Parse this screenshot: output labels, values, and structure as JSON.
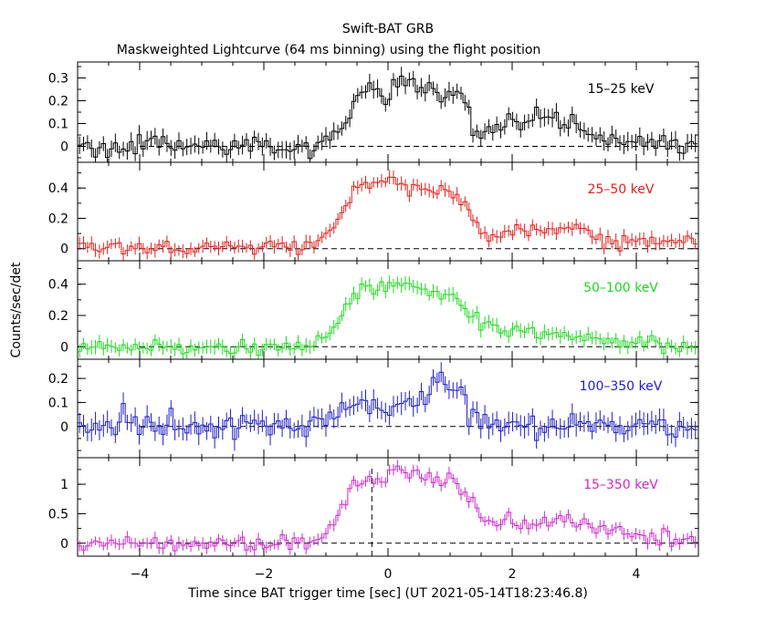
{
  "chart_data": {
    "type": "line",
    "title": "Swift-BAT GRB",
    "subtitle": "Maskweighted Lightcurve (64 ms binning) using the flight position",
    "xlabel": "Time since BAT trigger time [sec] (UT 2021-05-14T18:23:46.8)",
    "ylabel": "Counts/sec/det",
    "xlim": [
      -5,
      5
    ],
    "x_ticks": [
      -4,
      -2,
      0,
      2,
      4
    ],
    "x_tick_labels": [
      "−4",
      "−2",
      "0",
      "2",
      "4"
    ],
    "bin_width_s": 0.064,
    "panels": [
      {
        "name": "15–25 keV",
        "color": "#000000",
        "ylim": [
          -0.07,
          0.37
        ],
        "yticks": [
          0,
          0.1,
          0.2,
          0.3
        ],
        "ytick_labels": [
          "0",
          "0.1",
          "0.2",
          "0.3"
        ],
        "err": 0.035,
        "noise": 0.022,
        "keypoints": [
          [
            -5,
            0.0
          ],
          [
            -1.3,
            0.0
          ],
          [
            -1.0,
            0.04
          ],
          [
            -0.6,
            0.12
          ],
          [
            -0.5,
            0.24
          ],
          [
            0.0,
            0.25
          ],
          [
            0.3,
            0.28
          ],
          [
            1.0,
            0.21
          ],
          [
            1.3,
            0.17
          ],
          [
            1.4,
            0.02
          ],
          [
            1.6,
            0.08
          ],
          [
            2.0,
            0.09
          ],
          [
            2.4,
            0.11
          ],
          [
            2.6,
            0.13
          ],
          [
            2.8,
            0.12
          ],
          [
            3.0,
            0.09
          ],
          [
            3.4,
            0.03
          ],
          [
            4.0,
            0.02
          ],
          [
            5.0,
            0.0
          ]
        ]
      },
      {
        "name": "25–50 keV",
        "color": "#e0201c",
        "ylim": [
          -0.08,
          0.57
        ],
        "yticks": [
          0,
          0.2,
          0.4
        ],
        "ytick_labels": [
          "0",
          "0.2",
          "0.4"
        ],
        "err": 0.04,
        "noise": 0.025,
        "keypoints": [
          [
            -5,
            0.01
          ],
          [
            -1.3,
            0.01
          ],
          [
            -1.1,
            0.05
          ],
          [
            -0.8,
            0.2
          ],
          [
            -0.6,
            0.38
          ],
          [
            -0.2,
            0.45
          ],
          [
            0.1,
            0.47
          ],
          [
            0.3,
            0.4
          ],
          [
            0.7,
            0.38
          ],
          [
            1.0,
            0.37
          ],
          [
            1.3,
            0.25
          ],
          [
            1.5,
            0.1
          ],
          [
            2.0,
            0.12
          ],
          [
            2.5,
            0.12
          ],
          [
            3.0,
            0.14
          ],
          [
            3.5,
            0.08
          ],
          [
            4.0,
            0.05
          ],
          [
            5.0,
            0.03
          ]
        ]
      },
      {
        "name": "50–100 keV",
        "color": "#1fd81f",
        "ylim": [
          -0.08,
          0.55
        ],
        "yticks": [
          0,
          0.2,
          0.4
        ],
        "ytick_labels": [
          "0",
          "0.2",
          "0.4"
        ],
        "err": 0.04,
        "noise": 0.025,
        "keypoints": [
          [
            -5,
            0.0
          ],
          [
            -1.2,
            0.0
          ],
          [
            -0.9,
            0.1
          ],
          [
            -0.6,
            0.3
          ],
          [
            -0.4,
            0.38
          ],
          [
            -0.2,
            0.35
          ],
          [
            0.1,
            0.43
          ],
          [
            0.3,
            0.42
          ],
          [
            0.6,
            0.36
          ],
          [
            1.0,
            0.35
          ],
          [
            1.3,
            0.2
          ],
          [
            1.6,
            0.12
          ],
          [
            2.0,
            0.09
          ],
          [
            2.5,
            0.07
          ],
          [
            3.0,
            0.06
          ],
          [
            3.6,
            0.03
          ],
          [
            5.0,
            0.0
          ]
        ]
      },
      {
        "name": "100–350 keV",
        "color": "#1e1ec8",
        "ylim": [
          -0.13,
          0.28
        ],
        "yticks": [
          0,
          0.1,
          0.2
        ],
        "ytick_labels": [
          "0",
          "0.1",
          "0.2"
        ],
        "err": 0.04,
        "noise": 0.028,
        "keypoints": [
          [
            -5,
            0.0
          ],
          [
            -1.1,
            0.0
          ],
          [
            -0.8,
            0.06
          ],
          [
            -0.4,
            0.08
          ],
          [
            0.0,
            0.07
          ],
          [
            0.3,
            0.09
          ],
          [
            0.6,
            0.13
          ],
          [
            0.9,
            0.17
          ],
          [
            1.2,
            0.14
          ],
          [
            1.3,
            0.03
          ],
          [
            2.0,
            0.02
          ],
          [
            3.0,
            0.01
          ],
          [
            5.0,
            0.0
          ]
        ]
      },
      {
        "name": "15–350 keV",
        "color": "#cc2acc",
        "ylim": [
          -0.22,
          1.45
        ],
        "yticks": [
          0,
          0.5,
          1
        ],
        "ytick_labels": [
          "0",
          "0.5",
          "1"
        ],
        "err": 0.09,
        "noise": 0.06,
        "keypoints": [
          [
            -5,
            0.0
          ],
          [
            -1.2,
            0.02
          ],
          [
            -0.9,
            0.3
          ],
          [
            -0.6,
            0.9
          ],
          [
            -0.3,
            1.1
          ],
          [
            0.0,
            1.1
          ],
          [
            0.2,
            1.27
          ],
          [
            0.5,
            1.12
          ],
          [
            0.8,
            1.15
          ],
          [
            1.1,
            1.05
          ],
          [
            1.3,
            0.75
          ],
          [
            1.6,
            0.35
          ],
          [
            2.0,
            0.35
          ],
          [
            2.5,
            0.33
          ],
          [
            2.8,
            0.42
          ],
          [
            3.3,
            0.25
          ],
          [
            4.0,
            0.12
          ],
          [
            5.0,
            0.05
          ]
        ]
      }
    ],
    "marker_time": -0.26,
    "grid": false,
    "baseline_style": "dashed"
  }
}
